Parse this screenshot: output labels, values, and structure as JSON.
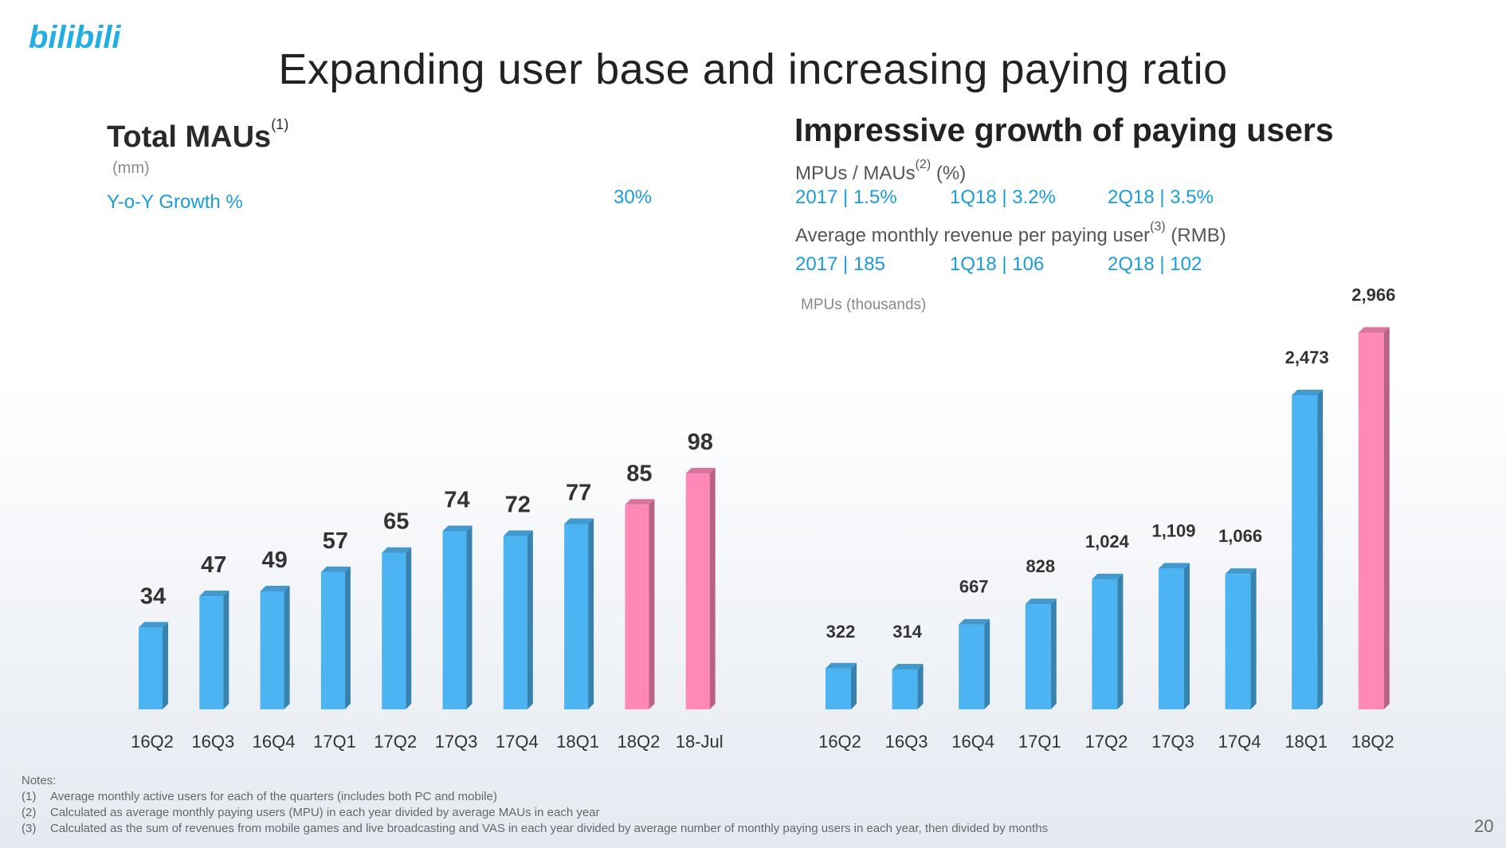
{
  "logo": {
    "text": "bilibili",
    "color": "#23ade5"
  },
  "slide_title": "Expanding user base and increasing paying ratio",
  "left": {
    "title": "Total MAUs",
    "title_note": "(1)",
    "unit": "(mm)",
    "growth_label": "Y-o-Y Growth %",
    "growth_value": "30%"
  },
  "right": {
    "title": "Impressive growth of paying users",
    "ratio_label": "MPUs / MAUs",
    "ratio_note": "(2)",
    "ratio_unit": "(%)",
    "ratios": [
      "2017 | 1.5%",
      "1Q18 | 3.2%",
      "2Q18 | 3.5%"
    ],
    "arpu_label": "Average monthly revenue per paying user",
    "arpu_note": "(3)",
    "arpu_unit": "(RMB)",
    "arpus": [
      "2017 | 185",
      "1Q18 | 106",
      "2Q18 | 102"
    ],
    "axis_label": "MPUs (thousands)"
  },
  "colors": {
    "blue": "#4cb4f2",
    "pink": "#ff88b7",
    "accent_text": "#1a9cd8"
  },
  "chart_data": [
    {
      "type": "bar",
      "title": "Total MAUs",
      "ylabel": "(mm)",
      "categories": [
        "16Q2",
        "16Q3",
        "16Q4",
        "17Q1",
        "17Q2",
        "17Q3",
        "17Q4",
        "18Q1",
        "18Q2",
        "18-Jul"
      ],
      "values": [
        34,
        47,
        49,
        57,
        65,
        74,
        72,
        77,
        85,
        98
      ],
      "labels": [
        "34",
        "47",
        "49",
        "57",
        "65",
        "74",
        "72",
        "77",
        "85",
        "98"
      ],
      "highlight": [
        false,
        false,
        false,
        false,
        false,
        false,
        false,
        false,
        true,
        true
      ],
      "ylim": [
        0,
        100
      ]
    },
    {
      "type": "bar",
      "title": "Impressive growth of paying users",
      "ylabel": "MPUs (thousands)",
      "categories": [
        "16Q2",
        "16Q3",
        "16Q4",
        "17Q1",
        "17Q2",
        "17Q3",
        "17Q4",
        "18Q1",
        "18Q2"
      ],
      "values": [
        322,
        314,
        667,
        828,
        1024,
        1109,
        1066,
        2473,
        2966
      ],
      "labels": [
        "322",
        "314",
        "667",
        "828",
        "1,024",
        "1,109",
        "1,066",
        "2,473",
        "2,966"
      ],
      "highlight": [
        false,
        false,
        false,
        false,
        false,
        false,
        false,
        false,
        true
      ],
      "ylim": [
        0,
        3000
      ]
    }
  ],
  "notes": {
    "heading": "Notes:",
    "items": [
      {
        "num": "(1)",
        "text": "Average monthly active users for each of the quarters (includes both PC and mobile)"
      },
      {
        "num": "(2)",
        "text": "Calculated as average monthly paying users (MPU) in each year divided by average MAUs in each year"
      },
      {
        "num": "(3)",
        "text": "Calculated as the sum of revenues from mobile games and live broadcasting and VAS in each year divided by average number of monthly paying users in each year, then divided by months"
      }
    ]
  },
  "page_number": "20"
}
